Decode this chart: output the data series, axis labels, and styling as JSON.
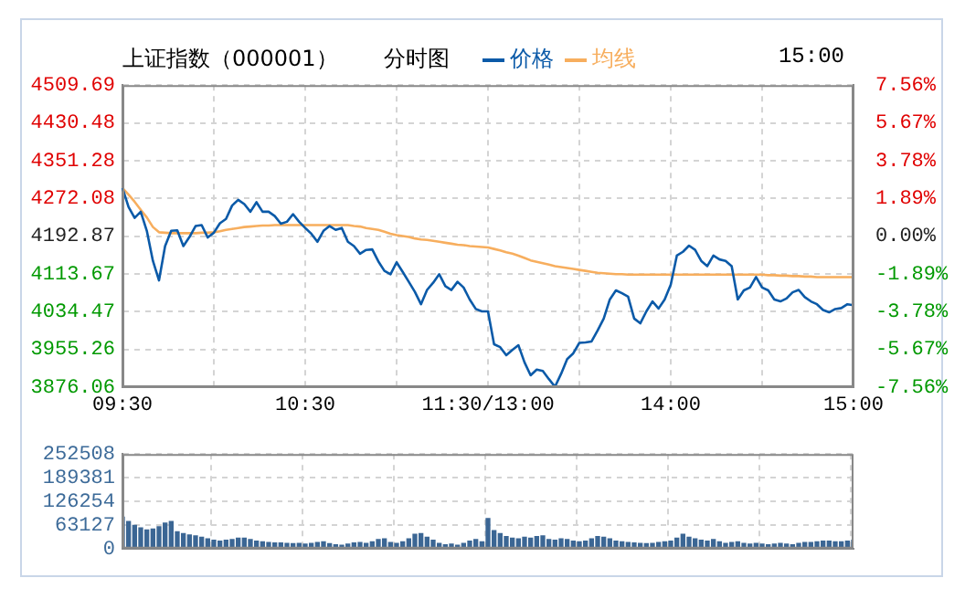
{
  "chart_data": [
    {
      "type": "line",
      "title": "上证指数（000001）",
      "subtitle": "分时图",
      "annotations": [
        "15:00"
      ],
      "legend": "top",
      "grid": true,
      "marker": "none",
      "line_style": "solid",
      "categories": [
        "09:30",
        null,
        null,
        null,
        null,
        null,
        null,
        null,
        null,
        null,
        null,
        null,
        null,
        null,
        null,
        null,
        null,
        null,
        null,
        null,
        null,
        null,
        null,
        null,
        null,
        null,
        null,
        null,
        null,
        null,
        "10:30",
        null,
        null,
        null,
        null,
        null,
        null,
        null,
        null,
        null,
        null,
        null,
        null,
        null,
        null,
        null,
        null,
        null,
        null,
        null,
        null,
        null,
        null,
        null,
        null,
        null,
        null,
        null,
        null,
        null,
        "11:30/13:00",
        null,
        null,
        null,
        null,
        null,
        null,
        null,
        null,
        null,
        null,
        null,
        null,
        null,
        null,
        null,
        null,
        null,
        null,
        null,
        null,
        null,
        null,
        null,
        null,
        null,
        null,
        null,
        null,
        null,
        "14:00",
        null,
        null,
        null,
        null,
        null,
        null,
        null,
        null,
        null,
        null,
        null,
        null,
        null,
        null,
        null,
        null,
        null,
        null,
        null,
        null,
        null,
        null,
        null,
        null,
        null,
        null,
        null,
        null,
        null,
        "15:00"
      ],
      "ylim": [
        3876.06,
        4509.69
      ],
      "yticks": [
        3876.06,
        3955.26,
        4034.47,
        4113.67,
        4192.87,
        4272.08,
        4351.28,
        4430.48,
        4509.69
      ],
      "y2lim": [
        -7.56,
        7.56
      ],
      "y2ticks": [
        {
          "value": -7.56,
          "label": "-7.56%"
        },
        {
          "value": -5.67,
          "label": "-5.67%"
        },
        {
          "value": -3.78,
          "label": "-3.78%"
        },
        {
          "value": -1.89,
          "label": "-1.89%"
        },
        {
          "value": 0,
          "label": "0.00%"
        },
        {
          "value": 1.89,
          "label": "1.89%"
        },
        {
          "value": 3.78,
          "label": "3.78%"
        },
        {
          "value": 5.67,
          "label": "5.67%"
        },
        {
          "value": 7.56,
          "label": "7.56%"
        }
      ],
      "series": [
        {
          "name": "价格",
          "color": "#0b5aa8",
          "values": [
            4294,
            4254,
            4231,
            4244,
            4204,
            4141,
            4100,
            4172,
            4204,
            4205,
            4172,
            4191,
            4214,
            4216,
            4190,
            4200,
            4220,
            4229,
            4257,
            4269,
            4260,
            4244,
            4264,
            4244,
            4244,
            4235,
            4219,
            4223,
            4239,
            4223,
            4210,
            4198,
            4181,
            4204,
            4214,
            4206,
            4210,
            4181,
            4172,
            4156,
            4164,
            4165,
            4140,
            4120,
            4113,
            4138,
            4118,
            4097,
            4076,
            4050,
            4080,
            4095,
            4113,
            4088,
            4080,
            4097,
            4085,
            4060,
            4040,
            4035,
            4035,
            3966,
            3960,
            3943,
            3954,
            3964,
            3928,
            3901,
            3913,
            3910,
            3893,
            3877,
            3904,
            3935,
            3947,
            3969,
            3970,
            3972,
            3995,
            4020,
            4060,
            4079,
            4073,
            4066,
            4020,
            4010,
            4035,
            4056,
            4041,
            4060,
            4091,
            4152,
            4160,
            4173,
            4164,
            4141,
            4130,
            4152,
            4144,
            4141,
            4130,
            4060,
            4079,
            4085,
            4107,
            4085,
            4079,
            4060,
            4056,
            4062,
            4075,
            4080,
            4065,
            4056,
            4050,
            4038,
            4033,
            4040,
            4042,
            4050,
            4048
          ]
        },
        {
          "name": "均线",
          "color": "#f7ae5e",
          "values": [
            4294,
            4280,
            4265,
            4248,
            4232,
            4212,
            4201,
            4200,
            4199,
            4199,
            4199,
            4199,
            4199,
            4200,
            4200,
            4201,
            4203,
            4206,
            4208,
            4210,
            4212,
            4213,
            4214,
            4215,
            4215,
            4216,
            4216,
            4216,
            4216,
            4216,
            4216,
            4216,
            4216,
            4216,
            4216,
            4216,
            4216,
            4216,
            4214,
            4213,
            4210,
            4208,
            4206,
            4202,
            4198,
            4195,
            4193,
            4191,
            4188,
            4186,
            4185,
            4183,
            4181,
            4179,
            4177,
            4175,
            4174,
            4172,
            4171,
            4170,
            4169,
            4166,
            4163,
            4159,
            4156,
            4152,
            4147,
            4142,
            4139,
            4136,
            4133,
            4130,
            4128,
            4126,
            4124,
            4122,
            4120,
            4118,
            4116,
            4115,
            4114,
            4113,
            4113,
            4112,
            4112,
            4112,
            4112,
            4112,
            4112,
            4112,
            4112,
            4112,
            4112,
            4112,
            4112,
            4112,
            4112,
            4112,
            4112,
            4112,
            4112,
            4112,
            4112,
            4112,
            4112,
            4112,
            4111,
            4111,
            4110,
            4110,
            4109,
            4109,
            4108,
            4108,
            4107,
            4107,
            4107,
            4107,
            4107,
            4107,
            4107
          ]
        }
      ]
    },
    {
      "type": "bar",
      "grid": true,
      "tick_labels": "y",
      "categories": [
        null,
        null,
        null,
        null,
        null,
        null,
        null,
        null,
        null,
        null,
        null,
        null,
        null,
        null,
        null,
        null,
        null,
        null,
        null,
        null,
        null,
        null,
        null,
        null,
        null,
        null,
        null,
        null,
        null,
        null,
        null,
        null,
        null,
        null,
        null,
        null,
        null,
        null,
        null,
        null,
        null,
        null,
        null,
        null,
        null,
        null,
        null,
        null,
        null,
        null,
        null,
        null,
        null,
        null,
        null,
        null,
        null,
        null,
        null,
        null,
        null,
        null,
        null,
        null,
        null,
        null,
        null,
        null,
        null,
        null,
        null,
        null,
        null,
        null,
        null,
        null,
        null,
        null,
        null,
        null,
        null,
        null,
        null,
        null,
        null,
        null,
        null,
        null,
        null,
        null,
        null,
        null,
        null,
        null,
        null,
        null,
        null,
        null,
        null,
        null,
        null,
        null,
        null,
        null,
        null,
        null,
        null,
        null,
        null,
        null,
        null,
        null,
        null,
        null,
        null,
        null,
        null,
        null,
        null,
        null,
        null
      ],
      "ylim": [
        0,
        252508
      ],
      "yticks": [
        0,
        63127,
        126254,
        189381,
        252508
      ],
      "series": [
        {
          "color": "#3b6694",
          "values": [
            84000,
            72000,
            62000,
            55000,
            50000,
            52000,
            58000,
            68000,
            72000,
            45000,
            40000,
            36000,
            34000,
            30000,
            26000,
            22000,
            20000,
            22000,
            24000,
            28000,
            28000,
            24000,
            20000,
            18000,
            16000,
            15000,
            15000,
            14000,
            13000,
            14000,
            12000,
            14000,
            16000,
            18000,
            13000,
            10000,
            9000,
            12000,
            15000,
            16000,
            14000,
            18000,
            24000,
            26000,
            16000,
            14000,
            18000,
            26000,
            38000,
            40000,
            30000,
            22000,
            14000,
            10000,
            12000,
            9000,
            14000,
            20000,
            24000,
            18000,
            80000,
            48000,
            40000,
            32000,
            28000,
            26000,
            30000,
            28000,
            32000,
            34000,
            24000,
            22000,
            26000,
            24000,
            20000,
            18000,
            20000,
            26000,
            32000,
            30000,
            26000,
            20000,
            18000,
            16000,
            15000,
            14000,
            13000,
            14000,
            16000,
            18000,
            20000,
            28000,
            38000,
            30000,
            26000,
            22000,
            20000,
            24000,
            18000,
            14000,
            16000,
            18000,
            14000,
            12000,
            14000,
            12000,
            10000,
            12000,
            14000,
            12000,
            10000,
            14000,
            16000,
            16000,
            18000,
            20000,
            20000,
            18000,
            18000,
            20000,
            22000
          ]
        }
      ]
    }
  ]
}
